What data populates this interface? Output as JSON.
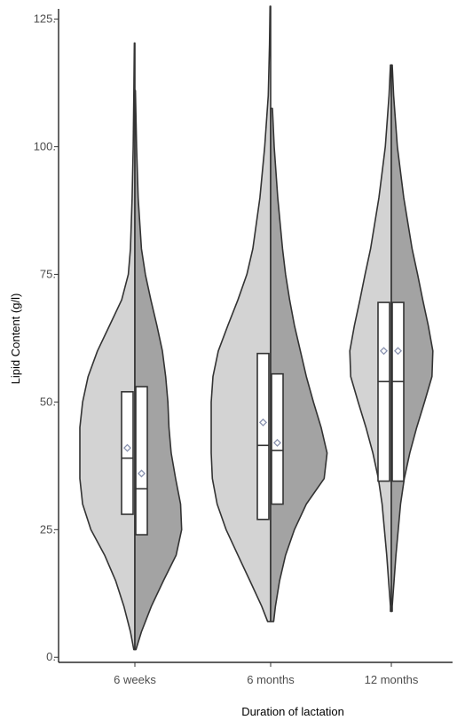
{
  "chart_data": {
    "type": "split-violin",
    "title": "",
    "xlabel": "Duration of lactation",
    "ylabel": "Lipid Content (g/l)",
    "ylim": [
      -1,
      127
    ],
    "yticks": [
      0,
      25,
      50,
      75,
      100,
      125
    ],
    "ytick_labels": [
      "0.",
      "25.",
      "50.",
      "75.",
      "100.",
      "125."
    ],
    "categories": [
      "6 weeks",
      "6 months",
      "12 months"
    ],
    "grid": false,
    "legend": "none",
    "colors": {
      "left_half": "#d3d3d3",
      "right_half": "#a3a3a3",
      "outline": "#333333",
      "mean_marker": "#8a93b0"
    },
    "groups": [
      {
        "category": "6 weeks",
        "left_density": [
          [
            120.3,
            0.01
          ],
          [
            110,
            0.02
          ],
          [
            100,
            0.03
          ],
          [
            90,
            0.05
          ],
          [
            80,
            0.08
          ],
          [
            75,
            0.12
          ],
          [
            70,
            0.24
          ],
          [
            65,
            0.46
          ],
          [
            60,
            0.68
          ],
          [
            55,
            0.85
          ],
          [
            50,
            0.95
          ],
          [
            45,
            1.0
          ],
          [
            40,
            1.0
          ],
          [
            35,
            1.0
          ],
          [
            30,
            0.95
          ],
          [
            25,
            0.8
          ],
          [
            20,
            0.55
          ],
          [
            15,
            0.35
          ],
          [
            10,
            0.2
          ],
          [
            5,
            0.08
          ],
          [
            1.5,
            0.02
          ]
        ],
        "right_density": [
          [
            111,
            0.01
          ],
          [
            100,
            0.03
          ],
          [
            90,
            0.06
          ],
          [
            80,
            0.12
          ],
          [
            75,
            0.19
          ],
          [
            70,
            0.29
          ],
          [
            65,
            0.4
          ],
          [
            60,
            0.5
          ],
          [
            55,
            0.56
          ],
          [
            50,
            0.6
          ],
          [
            45,
            0.62
          ],
          [
            40,
            0.66
          ],
          [
            35,
            0.74
          ],
          [
            30,
            0.83
          ],
          [
            25,
            0.85
          ],
          [
            20,
            0.75
          ],
          [
            15,
            0.52
          ],
          [
            10,
            0.3
          ],
          [
            5,
            0.12
          ],
          [
            1.5,
            0.02
          ]
        ],
        "left_box": {
          "q1": 28,
          "median": 39,
          "q3": 52,
          "mean": 41
        },
        "right_box": {
          "q1": 24,
          "median": 33,
          "q3": 53,
          "mean": 36
        }
      },
      {
        "category": "6 months",
        "left_density": [
          [
            127.5,
            0.01
          ],
          [
            120,
            0.02
          ],
          [
            110,
            0.04
          ],
          [
            100,
            0.1
          ],
          [
            90,
            0.18
          ],
          [
            80,
            0.3
          ],
          [
            75,
            0.4
          ],
          [
            70,
            0.55
          ],
          [
            65,
            0.72
          ],
          [
            60,
            0.88
          ],
          [
            55,
            0.97
          ],
          [
            50,
            1.0
          ],
          [
            45,
            1.0
          ],
          [
            40,
            1.0
          ],
          [
            35,
            0.98
          ],
          [
            30,
            0.9
          ],
          [
            25,
            0.75
          ],
          [
            20,
            0.55
          ],
          [
            15,
            0.35
          ],
          [
            10,
            0.15
          ],
          [
            7,
            0.05
          ]
        ],
        "right_density": [
          [
            107.5,
            0.03
          ],
          [
            100,
            0.06
          ],
          [
            90,
            0.12
          ],
          [
            80,
            0.2
          ],
          [
            75,
            0.25
          ],
          [
            70,
            0.32
          ],
          [
            65,
            0.4
          ],
          [
            60,
            0.5
          ],
          [
            55,
            0.6
          ],
          [
            50,
            0.72
          ],
          [
            45,
            0.85
          ],
          [
            40,
            0.95
          ],
          [
            35,
            0.9
          ],
          [
            30,
            0.6
          ],
          [
            25,
            0.4
          ],
          [
            20,
            0.25
          ],
          [
            15,
            0.15
          ],
          [
            10,
            0.08
          ],
          [
            7,
            0.05
          ]
        ],
        "left_box": {
          "q1": 27,
          "median": 41.5,
          "q3": 59.5,
          "mean": 46
        },
        "right_box": {
          "q1": 30,
          "median": 40.5,
          "q3": 55.5,
          "mean": 42
        }
      },
      {
        "category": "12 months",
        "left_density": [
          [
            116,
            0.02
          ],
          [
            110,
            0.05
          ],
          [
            100,
            0.13
          ],
          [
            90,
            0.27
          ],
          [
            80,
            0.45
          ],
          [
            75,
            0.57
          ],
          [
            70,
            0.68
          ],
          [
            65,
            0.8
          ],
          [
            60,
            0.9
          ],
          [
            55,
            0.88
          ],
          [
            50,
            0.72
          ],
          [
            45,
            0.55
          ],
          [
            40,
            0.4
          ],
          [
            35,
            0.28
          ],
          [
            30,
            0.2
          ],
          [
            25,
            0.15
          ],
          [
            20,
            0.1
          ],
          [
            15,
            0.06
          ],
          [
            10,
            0.02
          ],
          [
            9,
            0.02
          ]
        ],
        "right_density": [
          [
            116,
            0.02
          ],
          [
            110,
            0.05
          ],
          [
            100,
            0.13
          ],
          [
            90,
            0.27
          ],
          [
            80,
            0.45
          ],
          [
            75,
            0.57
          ],
          [
            70,
            0.68
          ],
          [
            65,
            0.8
          ],
          [
            60,
            0.9
          ],
          [
            55,
            0.88
          ],
          [
            50,
            0.72
          ],
          [
            45,
            0.55
          ],
          [
            40,
            0.4
          ],
          [
            35,
            0.28
          ],
          [
            30,
            0.2
          ],
          [
            25,
            0.15
          ],
          [
            20,
            0.1
          ],
          [
            15,
            0.06
          ],
          [
            10,
            0.02
          ],
          [
            9,
            0.02
          ]
        ],
        "left_box": {
          "q1": 34.5,
          "median": 54,
          "q3": 69.5,
          "mean": 60
        },
        "right_box": {
          "q1": 34.5,
          "median": 54,
          "q3": 69.5,
          "mean": 60
        }
      }
    ]
  }
}
